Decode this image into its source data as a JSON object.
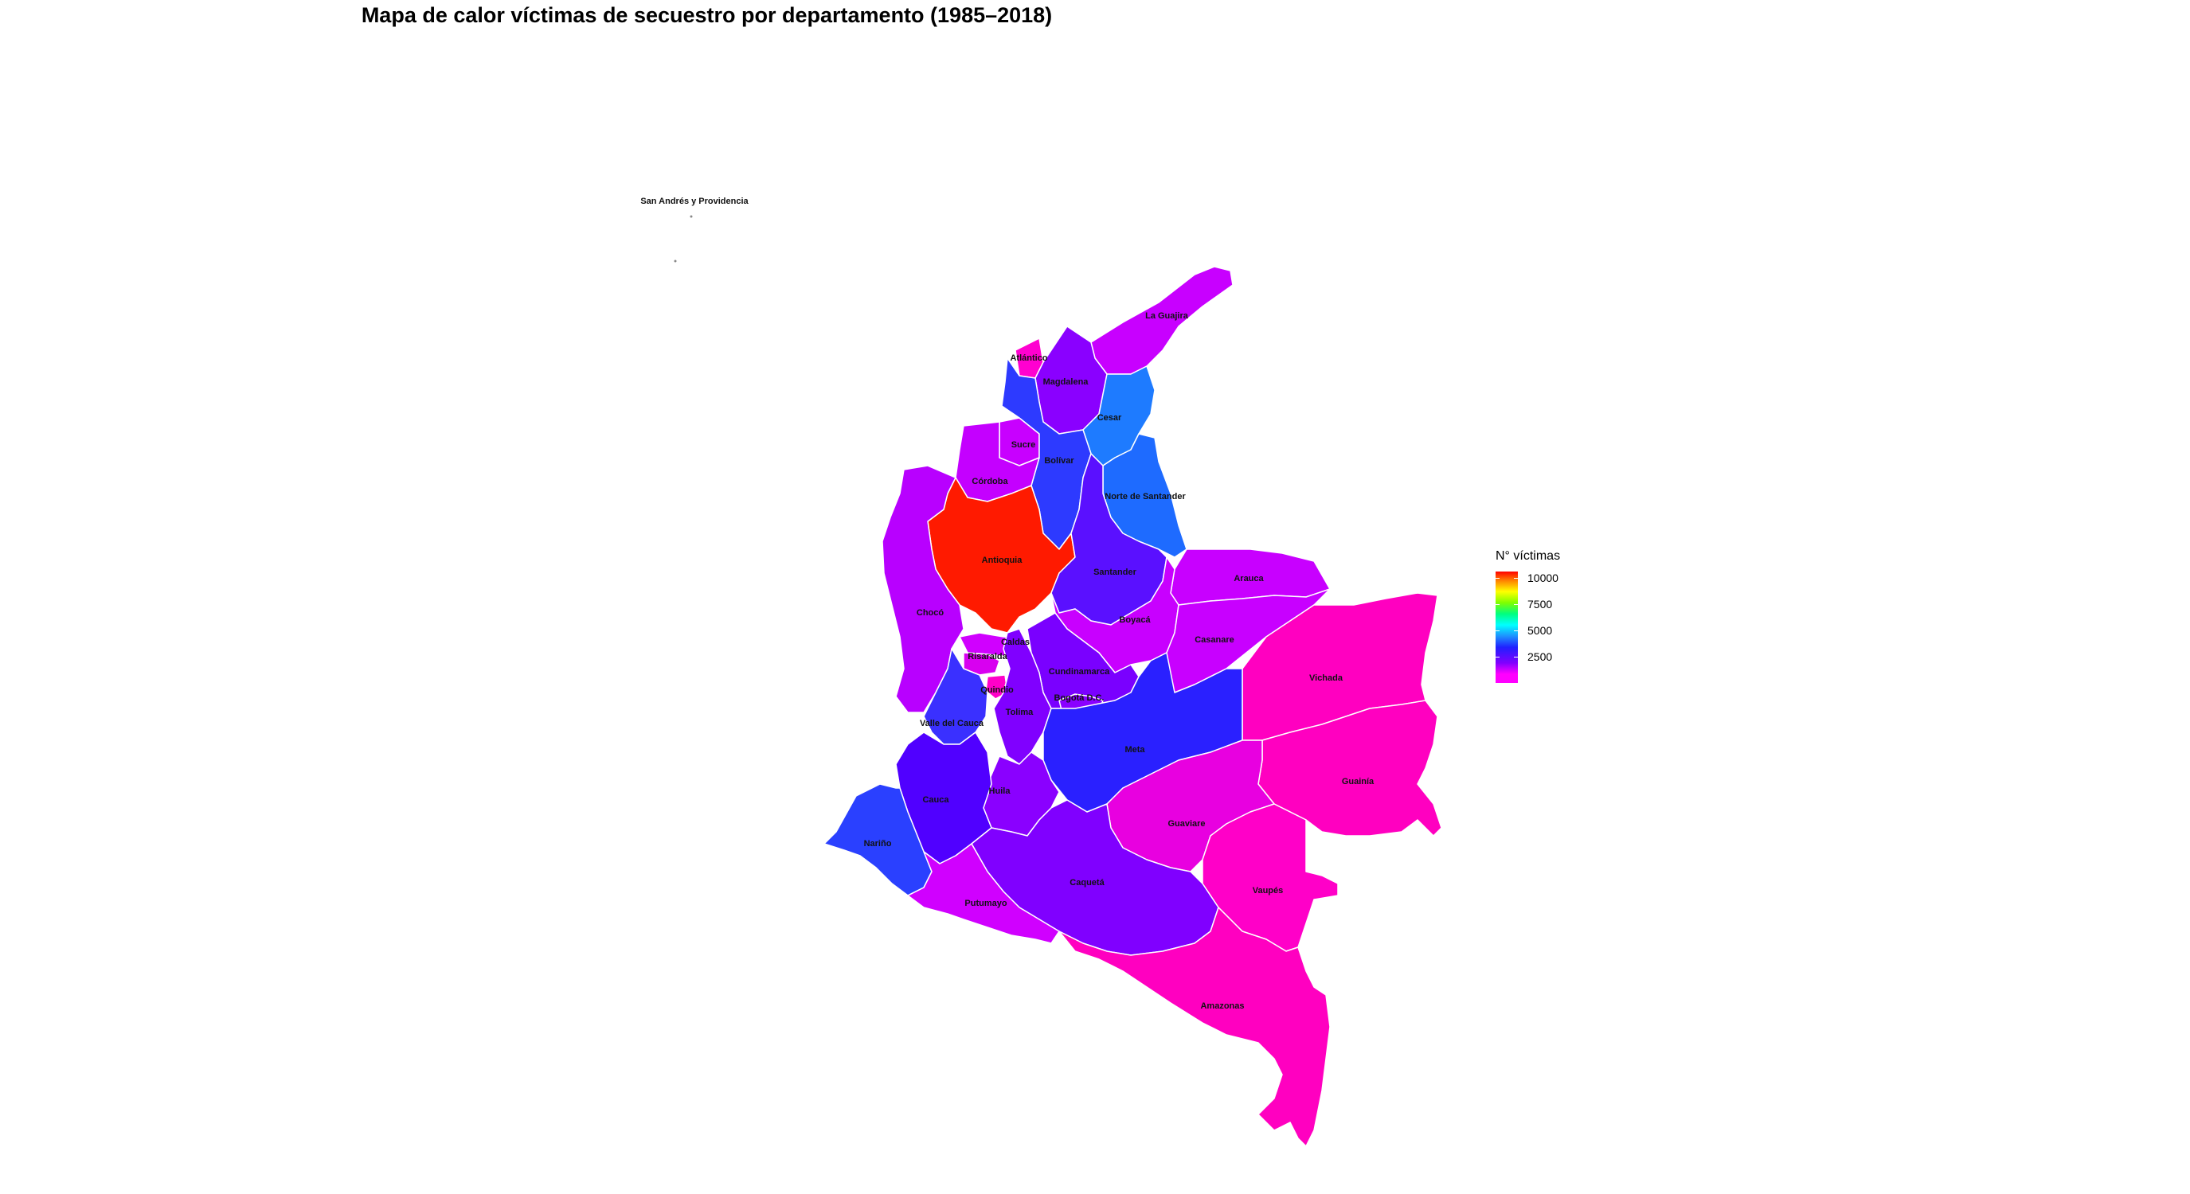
{
  "title": "Mapa de calor víctimas de secuestro por departamento (1985–2018)",
  "legend": {
    "title": "N° víctimas",
    "ticks": [
      "10000",
      "7500",
      "5000",
      "2500"
    ]
  },
  "map": {
    "departments": [
      {
        "key": "san_andres",
        "label": "San Andrés y Providencia",
        "color": "#ffffff"
      },
      {
        "key": "la_guajira",
        "label": "La Guajira",
        "color": "#c800ff"
      },
      {
        "key": "atlantico",
        "label": "Atlántico",
        "color": "#ff00d0"
      },
      {
        "key": "magdalena",
        "label": "Magdalena",
        "color": "#8a00ff"
      },
      {
        "key": "cesar",
        "label": "Cesar",
        "color": "#1e7bff"
      },
      {
        "key": "sucre",
        "label": "Sucre",
        "color": "#c800ff"
      },
      {
        "key": "bolivar",
        "label": "Bolívar",
        "color": "#2d3aff"
      },
      {
        "key": "cordoba",
        "label": "Córdoba",
        "color": "#c400ff"
      },
      {
        "key": "norte_santander",
        "label": "Norte de Santander",
        "color": "#1e6bff"
      },
      {
        "key": "antioquia",
        "label": "Antioquia",
        "color": "#ff1a00"
      },
      {
        "key": "santander",
        "label": "Santander",
        "color": "#5a10ff"
      },
      {
        "key": "arauca",
        "label": "Arauca",
        "color": "#c800ff"
      },
      {
        "key": "choco",
        "label": "Chocó",
        "color": "#b800ff"
      },
      {
        "key": "boyaca",
        "label": "Boyacá",
        "color": "#c800ff"
      },
      {
        "key": "casanare",
        "label": "Casanare",
        "color": "#c800ff"
      },
      {
        "key": "caldas",
        "label": "Caldas",
        "color": "#d000ff"
      },
      {
        "key": "risaralda",
        "label": "Risaralda",
        "color": "#d800f0"
      },
      {
        "key": "cundinamarca",
        "label": "Cundinamarca",
        "color": "#7a00ff"
      },
      {
        "key": "bogota",
        "label": "Bogotá D.C.",
        "color": "#8a00ff"
      },
      {
        "key": "vichada",
        "label": "Vichada",
        "color": "#ff00c0"
      },
      {
        "key": "quindio",
        "label": "Quindio",
        "color": "#ff00c8"
      },
      {
        "key": "tolima",
        "label": "Tolima",
        "color": "#8000ff"
      },
      {
        "key": "valle",
        "label": "Valle del Cauca",
        "color": "#3a30ff"
      },
      {
        "key": "meta",
        "label": "Meta",
        "color": "#2a20ff"
      },
      {
        "key": "guainia",
        "label": "Guainía",
        "color": "#ff00c0"
      },
      {
        "key": "huila",
        "label": "Huila",
        "color": "#8a00ff"
      },
      {
        "key": "cauca",
        "label": "Cauca",
        "color": "#5000ff"
      },
      {
        "key": "guaviare",
        "label": "Guaviare",
        "color": "#e800e0"
      },
      {
        "key": "narino",
        "label": "Nariño",
        "color": "#2a40ff"
      },
      {
        "key": "vaupes",
        "label": "Vaupés",
        "color": "#ff00c8"
      },
      {
        "key": "caqueta",
        "label": "Caquetá",
        "color": "#8000ff"
      },
      {
        "key": "putumayo",
        "label": "Putumayo",
        "color": "#d000ff"
      },
      {
        "key": "amazonas",
        "label": "Amazonas",
        "color": "#ff00c0"
      }
    ]
  }
}
